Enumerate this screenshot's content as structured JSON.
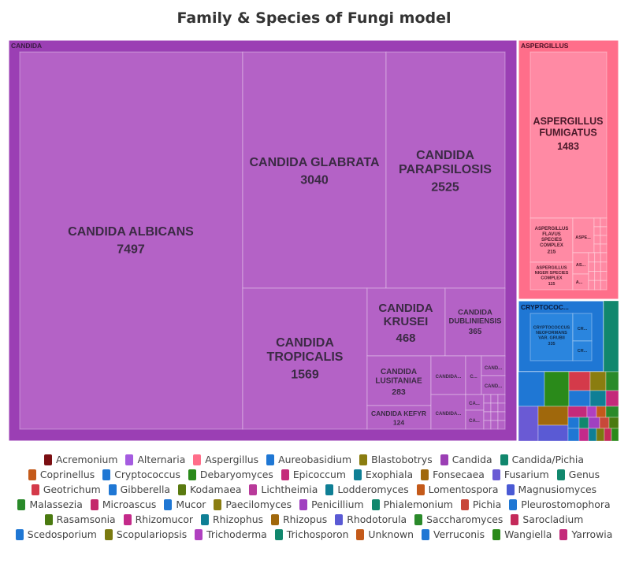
{
  "chart_data": {
    "type": "treemap",
    "title": "Family & Species of Fungi model",
    "groups": [
      {
        "name": "CANDIDA",
        "color": "#9b3fb4",
        "children": [
          {
            "name": "CANDIDA ALBICANS",
            "value": 7497
          },
          {
            "name": "CANDIDA GLABRATA",
            "value": 3040
          },
          {
            "name": "CANDIDA PARAPSILOSIS",
            "value": 2525
          },
          {
            "name": "CANDIDA TROPICALIS",
            "value": 1569
          },
          {
            "name": "CANDIDA KRUSEI",
            "value": 468
          },
          {
            "name": "CANDIDA DUBLINIENSIS",
            "value": 365
          },
          {
            "name": "CANDIDA LUSITANIAE",
            "value": 283
          },
          {
            "name": "CANDIDA KEFYR",
            "value": 124
          },
          {
            "name": "CANDIDA...",
            "value": null
          },
          {
            "name": "CANDIDA...",
            "value": null
          },
          {
            "name": "C...",
            "value": null
          },
          {
            "name": "CAND...",
            "value": null
          },
          {
            "name": "CAND...",
            "value": null
          },
          {
            "name": "CA...",
            "value": null
          },
          {
            "name": "CA...",
            "value": null
          }
        ]
      },
      {
        "name": "ASPERGILLUS",
        "color": "#ff6e8a",
        "children": [
          {
            "name": "ASPERGILLUS FUMIGATUS",
            "value": 1483
          },
          {
            "name": "ASPERGILLUS FLAVUS SPECIES COMPLEX",
            "value": 215
          },
          {
            "name": "ASPERGILLUS NIGER SPECIES COMPLEX",
            "value": 115
          },
          {
            "name": "ASPE...",
            "value": null
          },
          {
            "name": "AS...",
            "value": null
          },
          {
            "name": "A...",
            "value": null
          }
        ]
      },
      {
        "name": "CRYPTOCOC...",
        "color": "#1f77d4",
        "children": [
          {
            "name": "CRYPTOCOCCUS NEOFORMANS VAR. GRUBII",
            "value": 335
          },
          {
            "name": "CR...",
            "value": null
          },
          {
            "name": "CR...",
            "value": null
          }
        ]
      }
    ],
    "legend": {
      "position": "bottom",
      "entries": [
        {
          "name": "Acremonium",
          "color": "#7b0f12"
        },
        {
          "name": "Alternaria",
          "color": "#a55ce0"
        },
        {
          "name": "Aspergillus",
          "color": "#ff6e8a"
        },
        {
          "name": "Aureobasidium",
          "color": "#1f77d4"
        },
        {
          "name": "Blastobotrys",
          "color": "#8a7d10"
        },
        {
          "name": "Candida",
          "color": "#9b3fb4"
        },
        {
          "name": "Candida/Pichia",
          "color": "#11876d"
        },
        {
          "name": "Coprinellus",
          "color": "#c45a1a"
        },
        {
          "name": "Cryptococcus",
          "color": "#1f77d4"
        },
        {
          "name": "Debaryomyces",
          "color": "#2a8a1a"
        },
        {
          "name": "Epicoccum",
          "color": "#c42a7a"
        },
        {
          "name": "Exophiala",
          "color": "#0f7f95"
        },
        {
          "name": "Fonsecaea",
          "color": "#a0680c"
        },
        {
          "name": "Fusarium",
          "color": "#6a5ad4"
        },
        {
          "name": "Genus",
          "color": "#11876d"
        },
        {
          "name": "Geotrichum",
          "color": "#d43a4a"
        },
        {
          "name": "Gibberella",
          "color": "#1f77d4"
        },
        {
          "name": "Kodamaea",
          "color": "#5a7a10"
        },
        {
          "name": "Lichtheimia",
          "color": "#b83a9a"
        },
        {
          "name": "Lodderomyces",
          "color": "#0f7f95"
        },
        {
          "name": "Lomentospora",
          "color": "#c45a1a"
        },
        {
          "name": "Magnusiomyces",
          "color": "#4a5ad4"
        },
        {
          "name": "Malassezia",
          "color": "#2a8a2a"
        },
        {
          "name": "Microascus",
          "color": "#c4286a"
        },
        {
          "name": "Mucor",
          "color": "#1f77d4"
        },
        {
          "name": "Paecilomyces",
          "color": "#8a7d10"
        },
        {
          "name": "Penicillium",
          "color": "#a040c0"
        },
        {
          "name": "Phialemonium",
          "color": "#11876d"
        },
        {
          "name": "Pichia",
          "color": "#c8483a"
        },
        {
          "name": "Pleurostomophora",
          "color": "#1f77d4"
        },
        {
          "name": "Rasamsonia",
          "color": "#4a7a10"
        },
        {
          "name": "Rhizomucor",
          "color": "#c42a8a"
        },
        {
          "name": "Rhizophus",
          "color": "#0f7f95"
        },
        {
          "name": "Rhizopus",
          "color": "#a0680c"
        },
        {
          "name": "Rhodotorula",
          "color": "#5a5ad4"
        },
        {
          "name": "Saccharomyces",
          "color": "#2a8a2a"
        },
        {
          "name": "Sarocladium",
          "color": "#c42a5a"
        },
        {
          "name": "Scedosporium",
          "color": "#1f77d4"
        },
        {
          "name": "Scopulariopsis",
          "color": "#7a7a10"
        },
        {
          "name": "Trichoderma",
          "color": "#b040c0"
        },
        {
          "name": "Trichosporon",
          "color": "#11876d"
        },
        {
          "name": "Unknown",
          "color": "#c45a1a"
        },
        {
          "name": "Verruconis",
          "color": "#1f77d4"
        },
        {
          "name": "Wangiella",
          "color": "#2a8a1a"
        },
        {
          "name": "Yarrowia",
          "color": "#c42a7a"
        }
      ]
    }
  }
}
